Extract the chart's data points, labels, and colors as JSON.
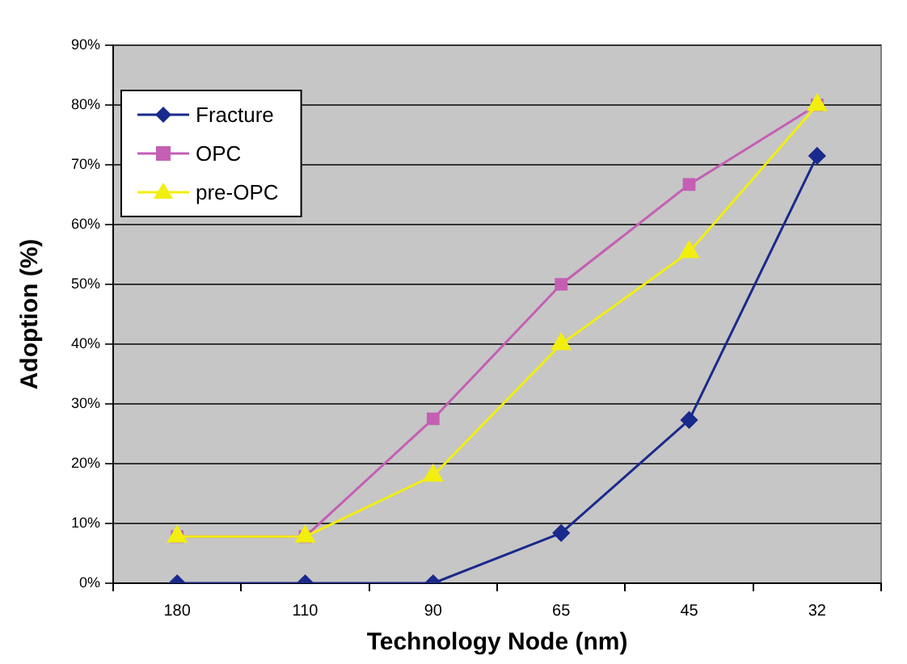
{
  "chart_data": {
    "type": "line",
    "xlabel": "Technology Node (nm)",
    "ylabel": "Adoption (%)",
    "categories": [
      "180",
      "110",
      "90",
      "65",
      "45",
      "32"
    ],
    "series": [
      {
        "name": "Fracture",
        "color": "#1a2a8c",
        "marker": "diamond",
        "values": [
          0,
          0,
          0,
          8.4,
          27.3,
          71.5
        ]
      },
      {
        "name": "OPC",
        "color": "#c45fb4",
        "marker": "square",
        "values": [
          7.8,
          7.8,
          27.5,
          50,
          66.7,
          80
        ]
      },
      {
        "name": "pre-OPC",
        "color": "#f2ee10",
        "marker": "triangle",
        "values": [
          7.8,
          7.8,
          18,
          40,
          55.4,
          80
        ]
      }
    ],
    "ylim": [
      0,
      90
    ],
    "yticks": [
      {
        "value": 0,
        "label": "0%"
      },
      {
        "value": 10,
        "label": "10%"
      },
      {
        "value": 20,
        "label": "20%"
      },
      {
        "value": 30,
        "label": "30%"
      },
      {
        "value": 40,
        "label": "40%"
      },
      {
        "value": 50,
        "label": "50%"
      },
      {
        "value": 60,
        "label": "60%"
      },
      {
        "value": 70,
        "label": "70%"
      },
      {
        "value": 80,
        "label": "80%"
      },
      {
        "value": 90,
        "label": "90%"
      }
    ],
    "grid": "y",
    "legend": "top left",
    "line_style": "solid"
  }
}
